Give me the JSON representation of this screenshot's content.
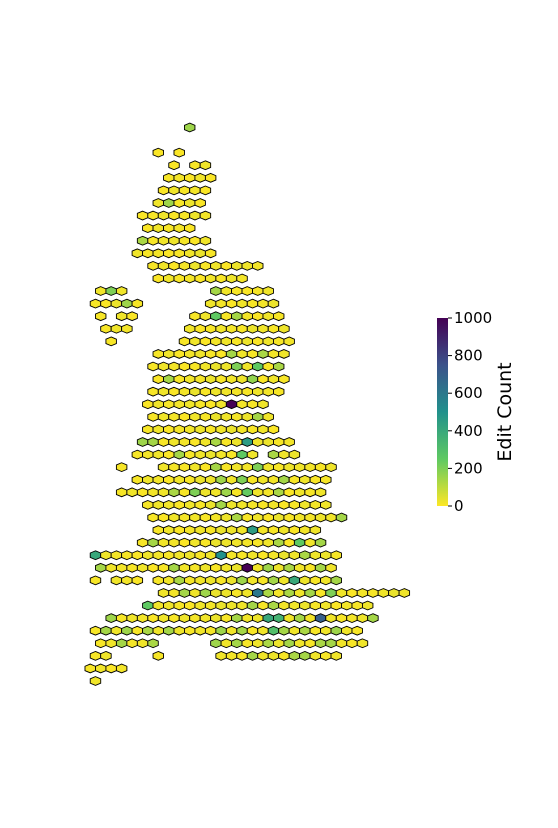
{
  "chart_data": {
    "type": "heatmap",
    "title": "",
    "colorbar": {
      "label": "Edit Count",
      "range": [
        0,
        1000
      ],
      "ticks": [
        0,
        200,
        400,
        600,
        800,
        1000
      ],
      "colormap": "viridis_r",
      "colors": [
        "#fde725",
        "#5ec962",
        "#21918c",
        "#3b528b",
        "#440154"
      ]
    },
    "rows": [
      {
        "row": 0,
        "start": 10,
        "values": [
          150
        ]
      },
      {
        "row": 2,
        "start": 7,
        "values": [
          5,
          -1,
          5
        ]
      },
      {
        "row": 3,
        "start": 8,
        "values": [
          5,
          -1,
          10,
          20
        ]
      },
      {
        "row": 4,
        "start": 8,
        "values": [
          10,
          15,
          5,
          20,
          5
        ]
      },
      {
        "row": 5,
        "start": 7,
        "values": [
          5,
          20,
          10,
          15,
          5
        ]
      },
      {
        "row": 6,
        "start": 7,
        "values": [
          20,
          150,
          10,
          25,
          5
        ]
      },
      {
        "row": 7,
        "start": 5,
        "values": [
          5,
          10,
          20,
          5,
          10,
          25,
          15
        ]
      },
      {
        "row": 8,
        "start": 6,
        "values": [
          5,
          20,
          10,
          15,
          5
        ]
      },
      {
        "row": 9,
        "start": 5,
        "values": [
          130,
          10,
          20,
          25,
          15,
          5,
          20
        ]
      },
      {
        "row": 10,
        "start": 5,
        "values": [
          20,
          10,
          15,
          5,
          10,
          20,
          30,
          10
        ]
      },
      {
        "row": 11,
        "start": 6,
        "values": [
          10,
          20,
          5,
          15,
          25,
          10,
          20,
          5,
          25,
          20,
          15
        ]
      },
      {
        "row": 12,
        "start": 7,
        "values": [
          5,
          20,
          10,
          15,
          5,
          20,
          10,
          25,
          15
        ]
      },
      {
        "row": 13,
        "start": 1,
        "values": [
          20,
          200,
          20,
          -1,
          -1,
          -1,
          -1,
          -1,
          -1,
          -1,
          -1,
          140,
          20,
          10,
          5,
          10,
          20
        ]
      },
      {
        "row": 14,
        "start": 1,
        "values": [
          10,
          5,
          25,
          150,
          10,
          -1,
          -1,
          -1,
          -1,
          -1,
          -1,
          20,
          15,
          5,
          20,
          10,
          15,
          25
        ]
      },
      {
        "row": 15,
        "start": 1,
        "values": [
          10,
          -1,
          20,
          5,
          -1,
          -1,
          -1,
          -1,
          -1,
          10,
          20,
          250,
          10,
          140,
          15,
          5,
          20,
          10
        ]
      },
      {
        "row": 16,
        "start": 2,
        "values": [
          10,
          20,
          15,
          -1,
          -1,
          -1,
          -1,
          -1,
          20,
          5,
          10,
          20,
          15,
          10,
          30,
          20,
          10,
          25
        ]
      },
      {
        "row": 17,
        "start": 2,
        "values": [
          10,
          -1,
          -1,
          -1,
          -1,
          -1,
          -1,
          10,
          20,
          5,
          15,
          20,
          10,
          25,
          5,
          20,
          10,
          15
        ]
      },
      {
        "row": 18,
        "start": 7,
        "values": [
          10,
          20,
          5,
          15,
          20,
          10,
          5,
          140,
          20,
          10,
          130,
          15,
          20
        ]
      },
      {
        "row": 19,
        "start": 6,
        "values": [
          10,
          20,
          15,
          5,
          10,
          20,
          30,
          25,
          200,
          20,
          250,
          10,
          130
        ]
      },
      {
        "row": 20,
        "start": 7,
        "values": [
          5,
          140,
          10,
          20,
          15,
          30,
          10,
          20,
          25,
          170,
          5,
          20,
          10
        ]
      },
      {
        "row": 21,
        "start": 6,
        "values": [
          10,
          20,
          5,
          15,
          30,
          10,
          25,
          20,
          15,
          10,
          20,
          15,
          10
        ]
      },
      {
        "row": 22,
        "start": 6,
        "values": [
          5,
          20,
          10,
          15,
          20,
          10,
          5,
          20,
          1000,
          15,
          10,
          20
        ]
      },
      {
        "row": 23,
        "start": 6,
        "values": [
          10,
          20,
          15,
          5,
          20,
          10,
          30,
          20,
          15,
          25,
          140,
          20
        ]
      },
      {
        "row": 24,
        "start": 6,
        "values": [
          10,
          20,
          5,
          15,
          20,
          25,
          10,
          20,
          30,
          15,
          10,
          20,
          5
        ]
      },
      {
        "row": 25,
        "start": 5,
        "values": [
          150,
          140,
          10,
          20,
          15,
          5,
          20,
          130,
          10,
          25,
          450,
          20,
          25,
          10,
          15
        ]
      },
      {
        "row": 26,
        "start": 5,
        "values": [
          10,
          15,
          20,
          5,
          140,
          10,
          20,
          30,
          15,
          10,
          250,
          20,
          -1,
          130,
          20,
          25
        ]
      },
      {
        "row": 27,
        "start": 3,
        "values": [
          10,
          -1,
          -1,
          -1,
          20,
          15,
          10,
          20,
          5,
          140,
          10,
          20,
          15,
          200,
          20,
          10,
          25,
          20,
          15,
          10,
          20
        ]
      },
      {
        "row": 28,
        "start": 5,
        "values": [
          10,
          20,
          15,
          5,
          20,
          10,
          30,
          25,
          150,
          20,
          200,
          10,
          20,
          15,
          140,
          10,
          20,
          5,
          10
        ]
      },
      {
        "row": 29,
        "start": 3,
        "values": [
          10,
          20,
          5,
          15,
          20,
          130,
          10,
          200,
          25,
          20,
          150,
          10,
          240,
          20,
          15,
          130,
          5,
          20,
          10,
          20
        ]
      },
      {
        "row": 30,
        "start": 6,
        "values": [
          10,
          20,
          15,
          5,
          20,
          10,
          30,
          140,
          25,
          20,
          15,
          10,
          20,
          5,
          10,
          20,
          15,
          20
        ]
      },
      {
        "row": 31,
        "start": 6,
        "values": [
          10,
          5,
          20,
          15,
          20,
          10,
          15,
          25,
          130,
          10,
          20,
          5,
          30,
          10,
          20,
          15,
          25,
          20,
          140
        ]
      },
      {
        "row": 32,
        "start": 7,
        "values": [
          10,
          20,
          5,
          15,
          20,
          10,
          30,
          25,
          20,
          450,
          15,
          10,
          20,
          5,
          15,
          20
        ]
      },
      {
        "row": 33,
        "start": 5,
        "values": [
          10,
          140,
          20,
          15,
          5,
          20,
          10,
          30,
          25,
          20,
          15,
          10,
          20,
          130,
          5,
          250,
          20,
          140
        ]
      },
      {
        "row": 34,
        "start": 1,
        "values": [
          400,
          20,
          15,
          10,
          5,
          20,
          15,
          10,
          20,
          25,
          10,
          20,
          500,
          15,
          10,
          20,
          5,
          15,
          30,
          20,
          130,
          20,
          25,
          10
        ]
      },
      {
        "row": 35,
        "start": 1,
        "values": [
          140,
          20,
          15,
          10,
          20,
          5,
          10,
          140,
          20,
          15,
          25,
          10,
          20,
          30,
          1000,
          20,
          150,
          25,
          130,
          20,
          10,
          140,
          20
        ]
      },
      {
        "row": 36,
        "start": 1,
        "values": [
          10,
          -1,
          20,
          15,
          5,
          -1,
          10,
          20,
          130,
          15,
          20,
          25,
          10,
          30,
          150,
          20,
          10,
          140,
          20,
          400,
          25,
          10,
          20,
          140
        ]
      },
      {
        "row": 37,
        "start": 7,
        "values": [
          20,
          15,
          140,
          20,
          150,
          30,
          25,
          10,
          20,
          600,
          130,
          15,
          130,
          20,
          140,
          10,
          200,
          20,
          5,
          15,
          10,
          20,
          30,
          20
        ]
      },
      {
        "row": 38,
        "start": 6,
        "values": [
          250,
          15,
          20,
          10,
          5,
          20,
          15,
          30,
          25,
          20,
          140,
          10,
          130,
          15,
          20,
          25,
          10,
          20,
          5,
          15,
          10,
          20
        ]
      },
      {
        "row": 39,
        "start": 2,
        "values": [
          150,
          10,
          20,
          15,
          5,
          20,
          10,
          25,
          15,
          20,
          30,
          10,
          140,
          20,
          25,
          400,
          350,
          20,
          140,
          15,
          700,
          20,
          10,
          15,
          25,
          140
        ]
      },
      {
        "row": 40,
        "start": 1,
        "values": [
          10,
          140,
          20,
          150,
          10,
          130,
          20,
          140,
          25,
          10,
          20,
          15,
          150,
          20,
          140,
          10,
          20,
          300,
          140,
          20,
          130,
          10,
          20,
          150,
          20,
          10
        ]
      },
      {
        "row": 41,
        "start": 1,
        "values": [
          10,
          20,
          140,
          15,
          20,
          130,
          -1,
          -1,
          -1,
          -1,
          -1,
          150,
          20,
          140,
          10,
          20,
          130,
          25,
          140,
          20,
          10,
          130,
          140,
          20,
          10,
          20
        ]
      },
      {
        "row": 42,
        "start": 1,
        "values": [
          10,
          20,
          -1,
          -1,
          -1,
          -1,
          10,
          -1,
          -1,
          -1,
          -1,
          -1,
          20,
          15,
          10,
          140,
          20,
          25,
          10,
          130,
          140,
          20,
          10,
          20
        ]
      },
      {
        "row": 43,
        "start": 0,
        "values": [
          10,
          20,
          5,
          15
        ]
      },
      {
        "row": 44,
        "start": 1,
        "values": [
          20
        ]
      }
    ]
  }
}
